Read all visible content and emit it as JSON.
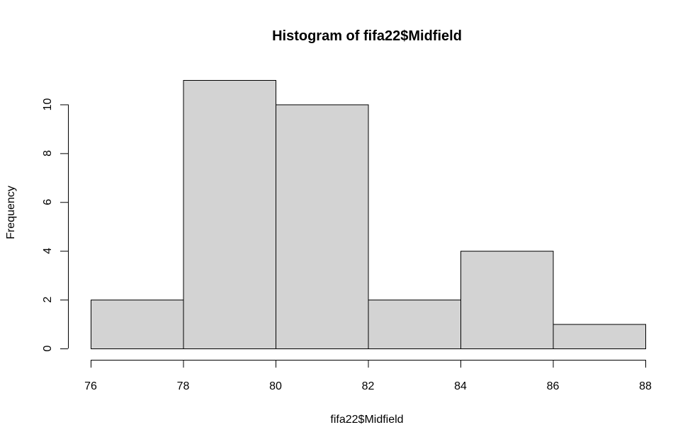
{
  "chart_data": {
    "type": "bar",
    "title": "Histogram of fifa22$Midfield",
    "xlabel": "fifa22$Midfield",
    "ylabel": "Frequency",
    "bins": [
      {
        "start": 76,
        "end": 78,
        "count": 2
      },
      {
        "start": 78,
        "end": 80,
        "count": 11
      },
      {
        "start": 80,
        "end": 82,
        "count": 10
      },
      {
        "start": 82,
        "end": 84,
        "count": 2
      },
      {
        "start": 84,
        "end": 86,
        "count": 4
      },
      {
        "start": 86,
        "end": 88,
        "count": 1
      }
    ],
    "xticks": [
      76,
      78,
      80,
      82,
      84,
      86,
      88
    ],
    "yticks": [
      0,
      2,
      4,
      6,
      8,
      10
    ],
    "xlim": [
      76,
      88
    ],
    "ylim": [
      0,
      11
    ],
    "grid": false,
    "colors": {
      "bar_fill": "#d3d3d3",
      "bar_stroke": "#000000"
    }
  }
}
